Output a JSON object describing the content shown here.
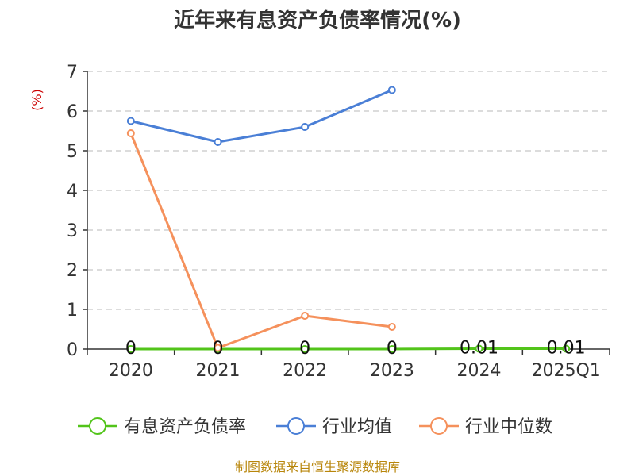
{
  "chart_data": {
    "type": "line",
    "title": "近年来有息资产负债率情况(%)",
    "ylabel": "(%)",
    "categories": [
      "2020",
      "2021",
      "2022",
      "2023",
      "2024",
      "2025Q1"
    ],
    "ylim": [
      0,
      7
    ],
    "yticks": [
      0,
      1,
      2,
      3,
      4,
      5,
      6,
      7
    ],
    "grid": true,
    "legend_position": "bottom",
    "series": [
      {
        "name": "有息资产负债率",
        "color": "#52c41a",
        "values": [
          0,
          0,
          0,
          0,
          0.01,
          0.01
        ],
        "labels": [
          "0",
          "0",
          "0",
          "0",
          "0.01",
          "0.01"
        ]
      },
      {
        "name": "行业均值",
        "color": "#4a7fd6",
        "values": [
          5.75,
          5.22,
          5.6,
          6.53,
          null,
          null
        ]
      },
      {
        "name": "行业中位数",
        "color": "#f5915c",
        "values": [
          5.44,
          0.03,
          0.84,
          0.56,
          null,
          null
        ]
      }
    ],
    "source": "制图数据来自恒生聚源数据库"
  }
}
